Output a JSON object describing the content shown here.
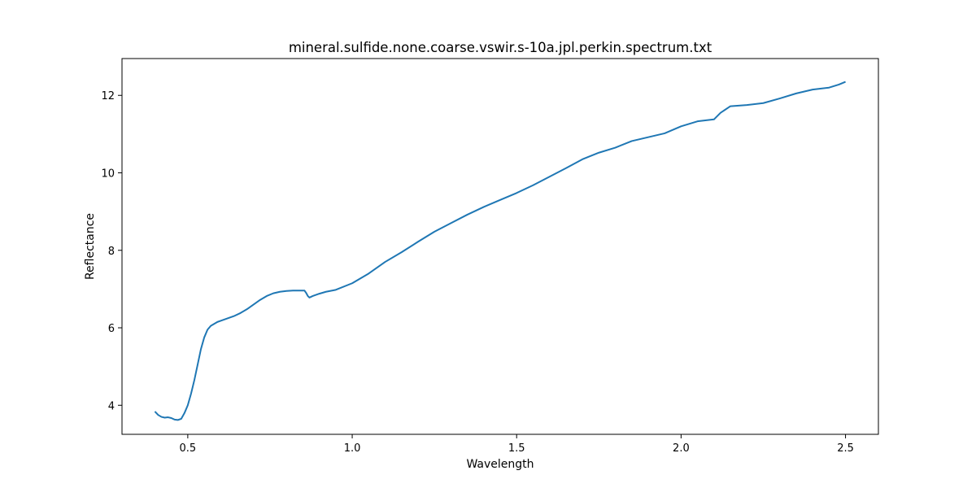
{
  "chart_data": {
    "type": "line",
    "title": "mineral.sulfide.none.coarse.vswir.s-10a.jpl.perkin.spectrum.txt",
    "xlabel": "Wavelength",
    "ylabel": "Reflectance",
    "xlim": [
      0.3,
      2.6
    ],
    "ylim": [
      3.25,
      12.95
    ],
    "xticks": [
      0.5,
      1.0,
      1.5,
      2.0,
      2.5
    ],
    "xtick_labels": [
      "0.5",
      "1.0",
      "1.5",
      "2.0",
      "2.5"
    ],
    "yticks": [
      4,
      6,
      8,
      10,
      12
    ],
    "ytick_labels": [
      "4",
      "6",
      "8",
      "10",
      "12"
    ],
    "grid": false,
    "line_color": "#1f77b4",
    "series": [
      {
        "x": [
          0.4,
          0.41,
          0.42,
          0.43,
          0.44,
          0.45,
          0.46,
          0.47,
          0.48,
          0.49,
          0.5,
          0.51,
          0.52,
          0.53,
          0.54,
          0.55,
          0.56,
          0.57,
          0.58,
          0.59,
          0.6,
          0.62,
          0.64,
          0.66,
          0.68,
          0.7,
          0.72,
          0.74,
          0.76,
          0.78,
          0.8,
          0.82,
          0.84,
          0.855,
          0.86,
          0.865,
          0.87,
          0.88,
          0.9,
          0.92,
          0.95,
          1.0,
          1.05,
          1.1,
          1.15,
          1.2,
          1.25,
          1.3,
          1.35,
          1.4,
          1.45,
          1.5,
          1.55,
          1.6,
          1.65,
          1.7,
          1.75,
          1.8,
          1.85,
          1.9,
          1.95,
          2.0,
          2.05,
          2.1,
          2.12,
          2.15,
          2.2,
          2.25,
          2.3,
          2.35,
          2.4,
          2.45,
          2.48,
          2.5
        ],
        "y": [
          3.84,
          3.75,
          3.7,
          3.68,
          3.69,
          3.67,
          3.63,
          3.62,
          3.65,
          3.8,
          4.0,
          4.3,
          4.65,
          5.05,
          5.45,
          5.75,
          5.95,
          6.05,
          6.1,
          6.15,
          6.18,
          6.24,
          6.3,
          6.38,
          6.48,
          6.6,
          6.72,
          6.82,
          6.89,
          6.93,
          6.95,
          6.96,
          6.96,
          6.96,
          6.9,
          6.82,
          6.78,
          6.82,
          6.88,
          6.93,
          6.98,
          7.15,
          7.4,
          7.7,
          7.95,
          8.22,
          8.48,
          8.7,
          8.92,
          9.12,
          9.3,
          9.48,
          9.68,
          9.9,
          10.12,
          10.35,
          10.52,
          10.65,
          10.82,
          10.92,
          11.02,
          11.2,
          11.33,
          11.38,
          11.55,
          11.72,
          11.75,
          11.8,
          11.92,
          12.05,
          12.15,
          12.2,
          12.28,
          12.35
        ]
      }
    ]
  }
}
